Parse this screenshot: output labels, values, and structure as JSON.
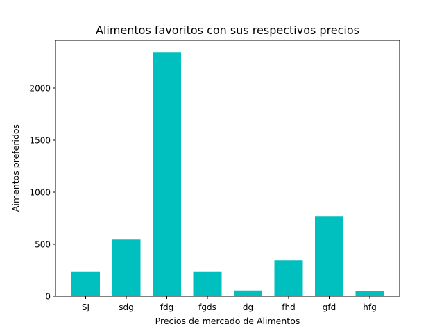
{
  "chart_data": {
    "type": "bar",
    "title": "Alimentos favoritos con sus respectivos precios",
    "xlabel": "Precios de mercado de Alimentos",
    "ylabel": "Aimentos preferidos",
    "categories": [
      "SJ",
      "sdg",
      "fdg",
      "fgds",
      "dg",
      "fhd",
      "gfd",
      "hfg"
    ],
    "values": [
      235,
      545,
      2345,
      235,
      55,
      345,
      765,
      50
    ],
    "ylim": [
      0,
      2400
    ],
    "yticks": [
      0,
      500,
      1000,
      1500,
      2000
    ],
    "bar_color": "#00bfbf",
    "grid": false
  }
}
